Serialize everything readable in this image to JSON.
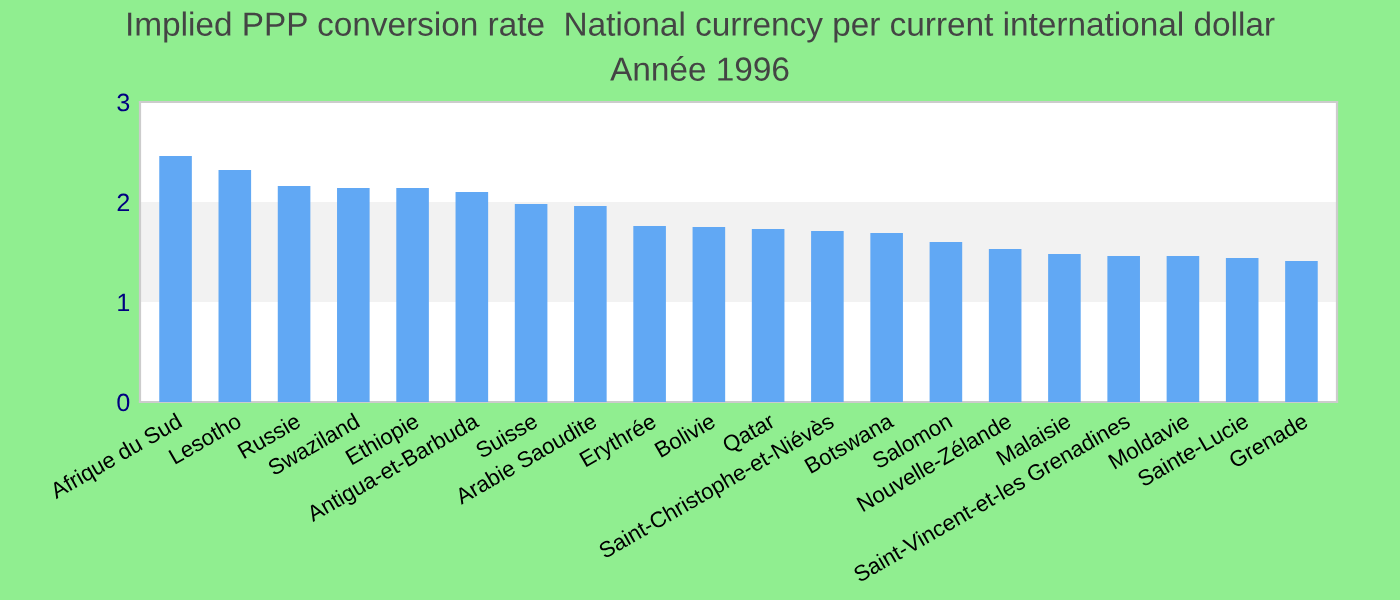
{
  "chart_data": {
    "type": "bar",
    "title": "Implied PPP conversion rate  National currency per current international dollar",
    "subtitle": "Année 1996",
    "categories": [
      "Afrique du Sud",
      "Lesotho",
      "Russie",
      "Swaziland",
      "Ethiopie",
      "Antigua-et-Barbuda",
      "Suisse",
      "Arabie Saoudite",
      "Erythrée",
      "Bolivie",
      "Qatar",
      "Saint-Christophe-et-Niévès",
      "Botswana",
      "Salomon",
      "Nouvelle-Zélande",
      "Malaisie",
      "Saint-Vincent-et-les Grenadines",
      "Moldavie",
      "Sainte-Lucie",
      "Grenade"
    ],
    "values": [
      2.46,
      2.32,
      2.16,
      2.14,
      2.14,
      2.1,
      1.98,
      1.96,
      1.76,
      1.75,
      1.73,
      1.71,
      1.69,
      1.6,
      1.53,
      1.48,
      1.46,
      1.46,
      1.44,
      1.41
    ],
    "color": "#61a8f4",
    "ylim": [
      0,
      3
    ],
    "yticks": [
      0,
      1,
      2,
      3
    ],
    "bands": [
      {
        "axis": "y",
        "from": 1,
        "to": 2,
        "color": "#f2f2f2"
      }
    ]
  }
}
